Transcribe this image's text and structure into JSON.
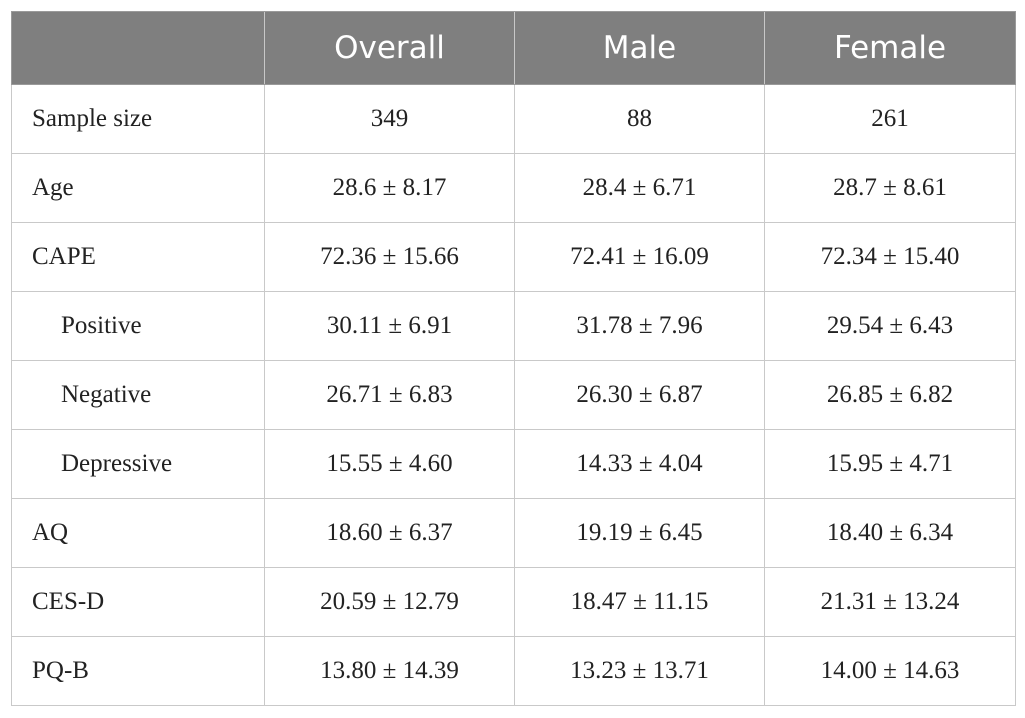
{
  "table": {
    "headers": [
      "",
      "Overall",
      "Male",
      "Female"
    ],
    "rows": [
      {
        "label": "Sample size",
        "indent": false,
        "overall": "349",
        "male": "88",
        "female": "261"
      },
      {
        "label": "Age",
        "indent": false,
        "overall": "28.6 ± 8.17",
        "male": "28.4 ± 6.71",
        "female": "28.7 ± 8.61"
      },
      {
        "label": "CAPE",
        "indent": false,
        "overall": "72.36 ± 15.66",
        "male": "72.41 ± 16.09",
        "female": "72.34 ± 15.40"
      },
      {
        "label": "Positive",
        "indent": true,
        "overall": "30.11 ± 6.91",
        "male": "31.78 ± 7.96",
        "female": "29.54 ± 6.43"
      },
      {
        "label": "Negative",
        "indent": true,
        "overall": "26.71 ± 6.83",
        "male": "26.30 ± 6.87",
        "female": "26.85 ± 6.82"
      },
      {
        "label": "Depressive",
        "indent": true,
        "overall": "15.55 ± 4.60",
        "male": "14.33 ± 4.04",
        "female": "15.95 ± 4.71"
      },
      {
        "label": "AQ",
        "indent": false,
        "overall": "18.60 ± 6.37",
        "male": "19.19 ± 6.45",
        "female": "18.40 ± 6.34"
      },
      {
        "label": "CES-D",
        "indent": false,
        "overall": "20.59 ± 12.79",
        "male": "18.47 ± 11.15",
        "female": "21.31 ± 13.24"
      },
      {
        "label": "PQ-B",
        "indent": false,
        "overall": "13.80 ± 14.39",
        "male": "13.23 ± 13.71",
        "female": "14.00 ± 14.63"
      }
    ]
  },
  "colors": {
    "header_bg": "#7f7f7f",
    "header_text": "#ffffff",
    "grid_line": "#c9c9c9",
    "body_text": "#222222"
  }
}
